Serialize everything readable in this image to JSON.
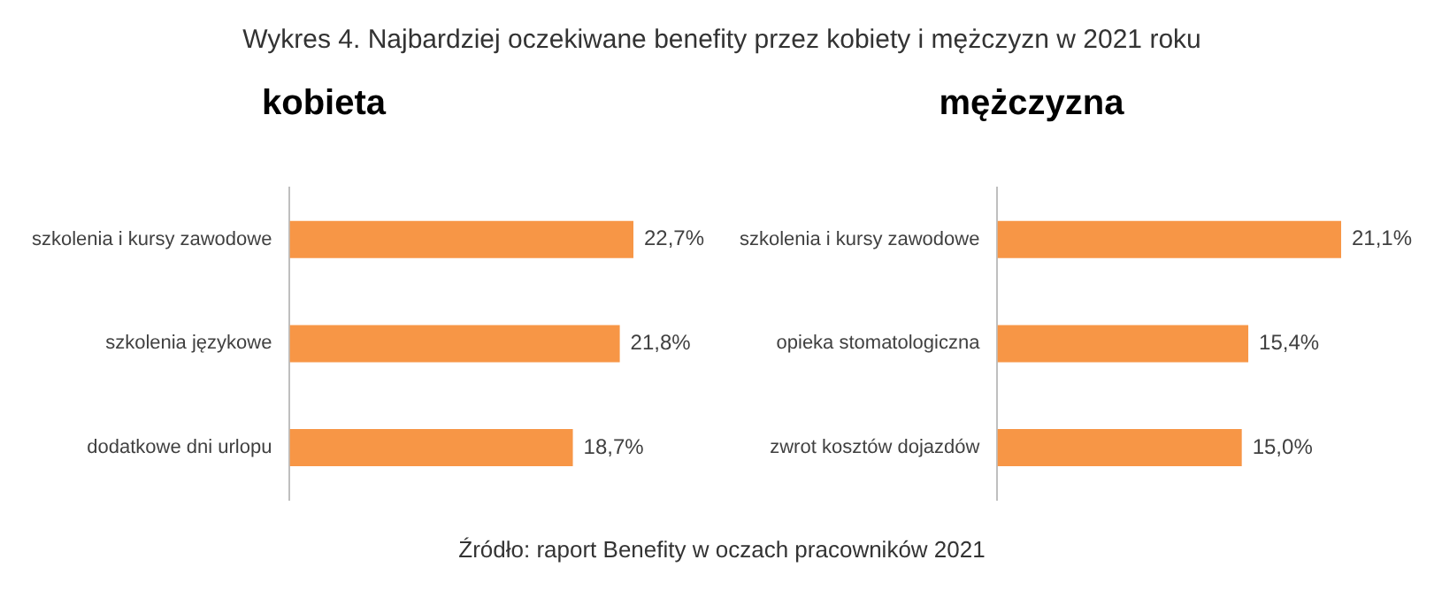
{
  "chart_data": [
    {
      "type": "other",
      "title": "Wykres 4. Najbardziej oczekiwane benefity przez kobiety i mężczyzn w 2021 roku"
    },
    {
      "type": "bar",
      "orientation": "horizontal",
      "title": "kobieta",
      "categories": [
        "szkolenia i kursy zawodowe",
        "szkolenia językowe",
        "dodatkowe dni urlopu"
      ],
      "values": [
        22.7,
        21.8,
        18.7
      ],
      "value_labels": [
        "22,7%",
        "21,8%",
        "18,7%"
      ],
      "color": "#f79646",
      "tick_labels": "y",
      "grid": false,
      "legend": false
    },
    {
      "type": "bar",
      "orientation": "horizontal",
      "title": "mężczyzna",
      "categories": [
        "szkolenia i kursy zawodowe",
        "opieka stomatologiczna",
        "zwrot kosztów dojazdów"
      ],
      "values": [
        21.1,
        15.4,
        15.0
      ],
      "value_labels": [
        "21,1%",
        "15,4%",
        "15,0%"
      ],
      "color": "#f79646",
      "tick_labels": "y",
      "grid": false,
      "legend": false
    },
    {
      "type": "other",
      "annotations": [
        "Źródło: raport Benefity w oczach pracowników 2021"
      ]
    }
  ]
}
